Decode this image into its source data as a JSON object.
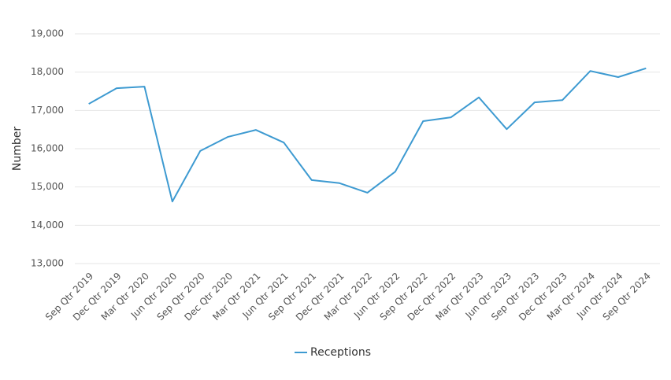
{
  "chart_data": {
    "type": "line",
    "y_label": "Number",
    "categories": [
      "Sep Qtr 2019",
      "Dec Qtr 2019",
      "Mar Qtr 2020",
      "Jun Qtr 2020",
      "Sep Qtr 2020",
      "Dec Qtr 2020",
      "Mar Qtr 2021",
      "Jun Qtr 2021",
      "Sep Qtr 2021",
      "Dec Qtr 2021",
      "Mar Qtr 2022",
      "Jun Qtr 2022",
      "Sep Qtr 2022",
      "Dec Qtr 2022",
      "Mar Qtr 2023",
      "Jun Qtr 2023",
      "Sep Qtr 2023",
      "Dec Qtr 2023",
      "Mar Qtr 2024",
      "Jun Qtr 2024",
      "Sep Qtr 2024"
    ],
    "series": [
      {
        "name": "Receptions",
        "color": "#3d9ad1",
        "values": [
          17170,
          17580,
          17620,
          14620,
          15940,
          16310,
          16490,
          16160,
          15180,
          15100,
          14850,
          15400,
          16720,
          16820,
          17340,
          16510,
          17210,
          17270,
          18030,
          17870,
          18100
        ]
      }
    ],
    "ylim": [
      13000,
      19000
    ],
    "yticks": [
      {
        "value": 13000,
        "label": "13,000"
      },
      {
        "value": 14000,
        "label": "14,000"
      },
      {
        "value": 15000,
        "label": "15,000"
      },
      {
        "value": 16000,
        "label": "16,000"
      },
      {
        "value": 17000,
        "label": "17,000"
      },
      {
        "value": 18000,
        "label": "18,000"
      },
      {
        "value": 19000,
        "label": "19,000"
      }
    ],
    "grid": true,
    "legend": "bottom"
  }
}
